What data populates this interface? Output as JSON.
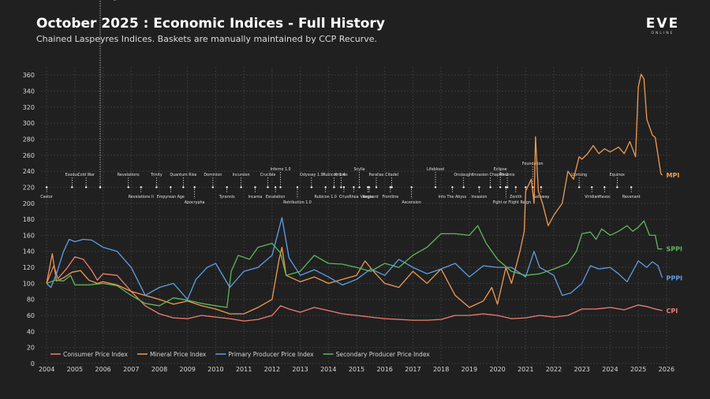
{
  "header": {
    "title": "October 2025 : Economic Indices - Full History",
    "subtitle": "Chained Laspeyres Indices. Baskets are manually maintained by CCP Recurve.",
    "logo": "EVE",
    "logo_sub": "ONLINE"
  },
  "chart_data": {
    "type": "line",
    "title": "October 2025 : Economic Indices - Full History",
    "xlabel": "",
    "ylabel": "",
    "xlim": [
      2003.8,
      2026.2
    ],
    "ylim": [
      0,
      370
    ],
    "yticks": [
      0,
      20,
      40,
      60,
      80,
      100,
      120,
      140,
      160,
      180,
      200,
      220,
      240,
      260,
      280,
      300,
      320,
      340,
      360
    ],
    "xticks": [
      "2004",
      "2005",
      "2006",
      "2007",
      "2008",
      "2009",
      "2010",
      "2011",
      "2012",
      "2013",
      "2014",
      "2015",
      "2016",
      "2017",
      "2018",
      "2019",
      "2020",
      "2021",
      "2022",
      "2023",
      "2024",
      "2025",
      "2026"
    ],
    "grid": true,
    "legend_position": "bottom-left",
    "series": [
      {
        "name": "Consumer Price Index",
        "short": "CPI",
        "color": "#f07e72",
        "points": [
          [
            2004,
            100
          ],
          [
            2004.25,
            122
          ],
          [
            2004.4,
            106
          ],
          [
            2004.7,
            118
          ],
          [
            2005,
            133
          ],
          [
            2005.3,
            130
          ],
          [
            2005.6,
            116
          ],
          [
            2005.8,
            104
          ],
          [
            2006,
            112
          ],
          [
            2006.5,
            110
          ],
          [
            2007,
            90
          ],
          [
            2007.5,
            72
          ],
          [
            2008,
            62
          ],
          [
            2008.5,
            57
          ],
          [
            2009,
            56
          ],
          [
            2009.5,
            60
          ],
          [
            2010,
            58
          ],
          [
            2010.5,
            56
          ],
          [
            2011,
            53
          ],
          [
            2011.5,
            55
          ],
          [
            2012,
            60
          ],
          [
            2012.3,
            72
          ],
          [
            2012.6,
            68
          ],
          [
            2013,
            64
          ],
          [
            2013.5,
            70
          ],
          [
            2014,
            66
          ],
          [
            2014.5,
            62
          ],
          [
            2015,
            60
          ],
          [
            2015.5,
            58
          ],
          [
            2016,
            56
          ],
          [
            2016.5,
            55
          ],
          [
            2017,
            54
          ],
          [
            2017.5,
            54
          ],
          [
            2018,
            55
          ],
          [
            2018.5,
            60
          ],
          [
            2019,
            60
          ],
          [
            2019.5,
            62
          ],
          [
            2020,
            60
          ],
          [
            2020.5,
            56
          ],
          [
            2021,
            57
          ],
          [
            2021.5,
            60
          ],
          [
            2022,
            58
          ],
          [
            2022.5,
            60
          ],
          [
            2023,
            68
          ],
          [
            2023.5,
            68
          ],
          [
            2024,
            70
          ],
          [
            2024.5,
            67
          ],
          [
            2025,
            73
          ],
          [
            2025.3,
            71
          ],
          [
            2025.6,
            68
          ],
          [
            2025.85,
            66
          ]
        ]
      },
      {
        "name": "Mineral Price Index",
        "short": "MPI",
        "color": "#ef9a52",
        "points": [
          [
            2004,
            100
          ],
          [
            2004.2,
            137
          ],
          [
            2004.35,
            103
          ],
          [
            2004.6,
            107
          ],
          [
            2004.9,
            114
          ],
          [
            2005.2,
            116
          ],
          [
            2005.5,
            104
          ],
          [
            2005.8,
            100
          ],
          [
            2006,
            102
          ],
          [
            2006.5,
            98
          ],
          [
            2007,
            90
          ],
          [
            2007.5,
            85
          ],
          [
            2008,
            80
          ],
          [
            2008.5,
            74
          ],
          [
            2009,
            78
          ],
          [
            2009.5,
            72
          ],
          [
            2010,
            68
          ],
          [
            2010.5,
            62
          ],
          [
            2011,
            62
          ],
          [
            2011.5,
            70
          ],
          [
            2012,
            80
          ],
          [
            2012.25,
            130
          ],
          [
            2012.35,
            145
          ],
          [
            2012.5,
            110
          ],
          [
            2013,
            102
          ],
          [
            2013.5,
            108
          ],
          [
            2014,
            100
          ],
          [
            2014.5,
            105
          ],
          [
            2015,
            110
          ],
          [
            2015.3,
            128
          ],
          [
            2015.6,
            115
          ],
          [
            2016,
            100
          ],
          [
            2016.5,
            95
          ],
          [
            2017,
            115
          ],
          [
            2017.5,
            100
          ],
          [
            2018,
            118
          ],
          [
            2018.5,
            85
          ],
          [
            2019,
            70
          ],
          [
            2019.5,
            78
          ],
          [
            2019.8,
            95
          ],
          [
            2020,
            74
          ],
          [
            2020.3,
            120
          ],
          [
            2020.5,
            100
          ],
          [
            2020.8,
            140
          ],
          [
            2020.95,
            165
          ],
          [
            2021,
            215
          ],
          [
            2021.2,
            230
          ],
          [
            2021.3,
            200
          ],
          [
            2021.35,
            283
          ],
          [
            2021.45,
            215
          ],
          [
            2021.6,
            200
          ],
          [
            2021.8,
            172
          ],
          [
            2022,
            185
          ],
          [
            2022.3,
            200
          ],
          [
            2022.5,
            240
          ],
          [
            2022.7,
            230
          ],
          [
            2022.9,
            258
          ],
          [
            2023,
            255
          ],
          [
            2023.2,
            262
          ],
          [
            2023.4,
            272
          ],
          [
            2023.6,
            262
          ],
          [
            2023.8,
            268
          ],
          [
            2024,
            264
          ],
          [
            2024.3,
            270
          ],
          [
            2024.5,
            262
          ],
          [
            2024.7,
            277
          ],
          [
            2024.9,
            258
          ],
          [
            2025,
            345
          ],
          [
            2025.1,
            361
          ],
          [
            2025.2,
            355
          ],
          [
            2025.3,
            305
          ],
          [
            2025.5,
            285
          ],
          [
            2025.6,
            282
          ],
          [
            2025.8,
            237
          ],
          [
            2025.85,
            235
          ]
        ]
      },
      {
        "name": "Primary Producer Price Index",
        "short": "PPPI",
        "color": "#5f9ee4",
        "points": [
          [
            2004,
            100
          ],
          [
            2004.15,
            95
          ],
          [
            2004.35,
            112
          ],
          [
            2004.6,
            140
          ],
          [
            2004.8,
            155
          ],
          [
            2005,
            152
          ],
          [
            2005.3,
            155
          ],
          [
            2005.6,
            154
          ],
          [
            2006,
            145
          ],
          [
            2006.5,
            140
          ],
          [
            2007,
            120
          ],
          [
            2007.5,
            85
          ],
          [
            2008,
            95
          ],
          [
            2008.5,
            100
          ],
          [
            2009,
            80
          ],
          [
            2009.3,
            105
          ],
          [
            2009.7,
            120
          ],
          [
            2010,
            125
          ],
          [
            2010.5,
            95
          ],
          [
            2011,
            115
          ],
          [
            2011.5,
            120
          ],
          [
            2012,
            135
          ],
          [
            2012.35,
            182
          ],
          [
            2012.6,
            132
          ],
          [
            2013,
            110
          ],
          [
            2013.5,
            117
          ],
          [
            2014,
            108
          ],
          [
            2014.5,
            98
          ],
          [
            2015,
            105
          ],
          [
            2015.5,
            118
          ],
          [
            2016,
            110
          ],
          [
            2016.5,
            130
          ],
          [
            2017,
            120
          ],
          [
            2017.5,
            112
          ],
          [
            2018,
            118
          ],
          [
            2018.5,
            125
          ],
          [
            2019,
            108
          ],
          [
            2019.5,
            122
          ],
          [
            2020,
            120
          ],
          [
            2020.5,
            120
          ],
          [
            2021,
            108
          ],
          [
            2021.3,
            140
          ],
          [
            2021.5,
            120
          ],
          [
            2022,
            110
          ],
          [
            2022.3,
            85
          ],
          [
            2022.6,
            88
          ],
          [
            2023,
            100
          ],
          [
            2023.3,
            122
          ],
          [
            2023.6,
            118
          ],
          [
            2024,
            120
          ],
          [
            2024.3,
            112
          ],
          [
            2024.6,
            102
          ],
          [
            2025,
            128
          ],
          [
            2025.3,
            120
          ],
          [
            2025.5,
            127
          ],
          [
            2025.7,
            122
          ],
          [
            2025.85,
            107
          ]
        ]
      },
      {
        "name": "Secondary Producer Price Index",
        "short": "SPPI",
        "color": "#5fb75a",
        "points": [
          [
            2004,
            100
          ],
          [
            2004.3,
            104
          ],
          [
            2004.6,
            103
          ],
          [
            2004.85,
            110
          ],
          [
            2005,
            98
          ],
          [
            2005.5,
            98
          ],
          [
            2006,
            100
          ],
          [
            2006.5,
            97
          ],
          [
            2007,
            85
          ],
          [
            2007.5,
            75
          ],
          [
            2008,
            72
          ],
          [
            2008.5,
            82
          ],
          [
            2009,
            79
          ],
          [
            2009.5,
            75
          ],
          [
            2010,
            72
          ],
          [
            2010.4,
            70
          ],
          [
            2010.55,
            115
          ],
          [
            2010.8,
            135
          ],
          [
            2011.2,
            130
          ],
          [
            2011.5,
            145
          ],
          [
            2012,
            150
          ],
          [
            2012.3,
            138
          ],
          [
            2012.5,
            110
          ],
          [
            2013,
            115
          ],
          [
            2013.5,
            135
          ],
          [
            2014,
            125
          ],
          [
            2014.5,
            124
          ],
          [
            2015,
            120
          ],
          [
            2015.5,
            115
          ],
          [
            2016,
            125
          ],
          [
            2016.5,
            120
          ],
          [
            2017,
            135
          ],
          [
            2017.5,
            145
          ],
          [
            2018,
            162
          ],
          [
            2018.5,
            162
          ],
          [
            2019,
            160
          ],
          [
            2019.3,
            172
          ],
          [
            2019.6,
            150
          ],
          [
            2020,
            130
          ],
          [
            2020.5,
            115
          ],
          [
            2021,
            110
          ],
          [
            2021.5,
            112
          ],
          [
            2022,
            118
          ],
          [
            2022.5,
            125
          ],
          [
            2022.8,
            140
          ],
          [
            2023,
            162
          ],
          [
            2023.3,
            164
          ],
          [
            2023.5,
            155
          ],
          [
            2023.7,
            168
          ],
          [
            2024,
            160
          ],
          [
            2024.3,
            165
          ],
          [
            2024.6,
            172
          ],
          [
            2024.8,
            165
          ],
          [
            2025,
            170
          ],
          [
            2025.2,
            178
          ],
          [
            2025.4,
            160
          ],
          [
            2025.6,
            160
          ],
          [
            2025.7,
            143
          ],
          [
            2025.85,
            143
          ]
        ]
      }
    ]
  },
  "expansions": [
    {
      "name": "Castor",
      "year": 2004.0,
      "tier": 0
    },
    {
      "name": "Exodus",
      "year": 2004.9,
      "tier": 2
    },
    {
      "name": "Cold War",
      "year": 2005.4,
      "tier": 2
    },
    {
      "name": "Red Moon Rising",
      "year": 2005.9,
      "tier": 1
    },
    {
      "name": "Revelations",
      "year": 2006.9,
      "tier": 2
    },
    {
      "name": "Revelations II",
      "year": 2007.35,
      "tier": 0
    },
    {
      "name": "Trinity",
      "year": 2007.9,
      "tier": 2
    },
    {
      "name": "Empyrean Age",
      "year": 2008.4,
      "tier": 0
    },
    {
      "name": "Quantum Rise",
      "year": 2008.85,
      "tier": 2
    },
    {
      "name": "Apocrypha",
      "year": 2009.25,
      "tier": -1
    },
    {
      "name": "Dominion",
      "year": 2009.9,
      "tier": 2
    },
    {
      "name": "Tyrannis",
      "year": 2010.4,
      "tier": 0
    },
    {
      "name": "Incursion",
      "year": 2010.9,
      "tier": 2
    },
    {
      "name": "Incarna",
      "year": 2011.4,
      "tier": 0
    },
    {
      "name": "Crucible",
      "year": 2011.85,
      "tier": 2
    },
    {
      "name": "Inferno 1.0",
      "year": 2012.3,
      "tier": 3
    },
    {
      "name": "Escalation",
      "year": 2012.12,
      "tier": 0
    },
    {
      "name": "Retribution 1.0",
      "year": 2012.9,
      "tier": -1
    },
    {
      "name": "Odyssey 1.0",
      "year": 2013.4,
      "tier": 2
    },
    {
      "name": "Rubicon 1.0",
      "year": 2013.9,
      "tier": 0
    },
    {
      "name": "Rubicon 1.4",
      "year": 2014.2,
      "tier": 2
    },
    {
      "name": "Kronos",
      "year": 2014.45,
      "tier": 2
    },
    {
      "name": "Crius",
      "year": 2014.55,
      "tier": 0
    },
    {
      "name": "Rhea",
      "year": 2014.9,
      "tier": 0
    },
    {
      "name": "Scylla",
      "year": 2015.1,
      "tier": 3
    },
    {
      "name": "Aegis",
      "year": 2015.4,
      "tier": 0
    },
    {
      "name": "Vanguard",
      "year": 2015.45,
      "tier": 0
    },
    {
      "name": "Parallax",
      "year": 2015.7,
      "tier": 2
    },
    {
      "name": "Citadel",
      "year": 2016.25,
      "tier": 2
    },
    {
      "name": "Frontline",
      "year": 2016.2,
      "tier": 0
    },
    {
      "name": "Ascension",
      "year": 2016.95,
      "tier": -1
    },
    {
      "name": "Lifeblood",
      "year": 2017.8,
      "tier": 3
    },
    {
      "name": "Into The Abyss",
      "year": 2018.4,
      "tier": 0
    },
    {
      "name": "Onslaught",
      "year": 2018.8,
      "tier": 2
    },
    {
      "name": "Invasion",
      "year": 2019.35,
      "tier": 0
    },
    {
      "name": "Invasion Chapter 2",
      "year": 2019.75,
      "tier": 2
    },
    {
      "name": "Eclipse",
      "year": 2020.1,
      "tier": 3
    },
    {
      "name": "Phoenix",
      "year": 2020.35,
      "tier": 2
    },
    {
      "name": "Fight or Flight",
      "year": 2020.3,
      "tier": -1
    },
    {
      "name": "Zenith",
      "year": 2020.65,
      "tier": 0
    },
    {
      "name": "Foundation",
      "year": 2021.25,
      "tier": 4
    },
    {
      "name": "Reign",
      "year": 2021.0,
      "tier": -1
    },
    {
      "name": "Gateway",
      "year": 2021.55,
      "tier": 0
    },
    {
      "name": "Uprising",
      "year": 2022.9,
      "tier": 2
    },
    {
      "name": "Viridian",
      "year": 2023.35,
      "tier": 0
    },
    {
      "name": "Havoc",
      "year": 2023.8,
      "tier": 0
    },
    {
      "name": "Equinox",
      "year": 2024.25,
      "tier": 2
    },
    {
      "name": "Revenant",
      "year": 2024.75,
      "tier": 0
    }
  ]
}
